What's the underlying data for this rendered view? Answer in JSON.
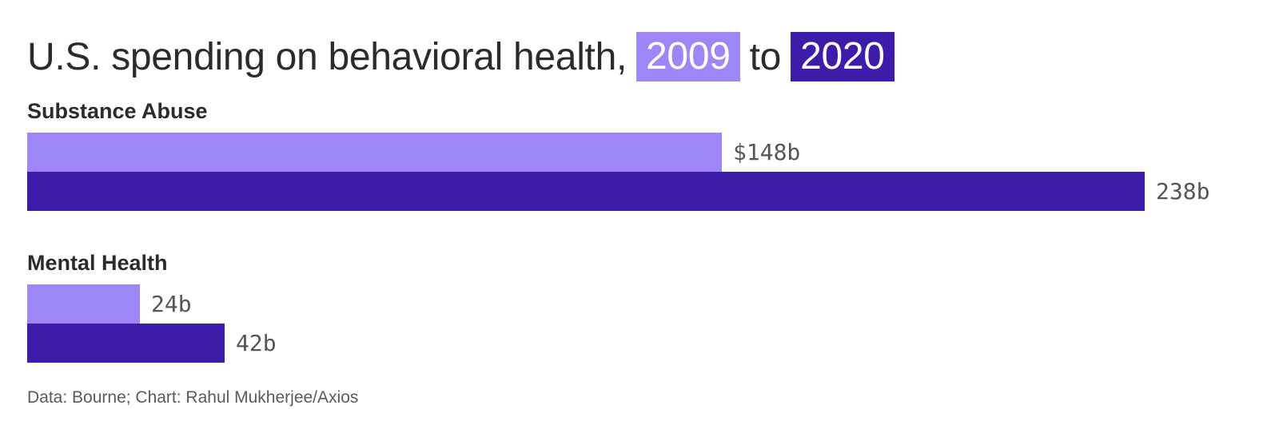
{
  "title": {
    "prefix": "U.S. spending on behavioral health,",
    "year_first": "2009",
    "connector": "to",
    "year_second": "2020"
  },
  "colors": {
    "year_2009": "#9e86f7",
    "year_2020": "#3d1caa"
  },
  "footer": "Data: Bourne; Chart: Rahul Mukherjee/Axios",
  "chart_data": {
    "type": "bar",
    "orientation": "horizontal",
    "categories": [
      "Substance Abuse",
      "Mental Health"
    ],
    "series": [
      {
        "name": "2009",
        "values": [
          148,
          24
        ],
        "labels": [
          "$148b",
          "24b"
        ]
      },
      {
        "name": "2020",
        "values": [
          238,
          42
        ],
        "labels": [
          "238b",
          "42b"
        ]
      }
    ],
    "xlim": [
      0,
      238
    ],
    "grid": false
  }
}
